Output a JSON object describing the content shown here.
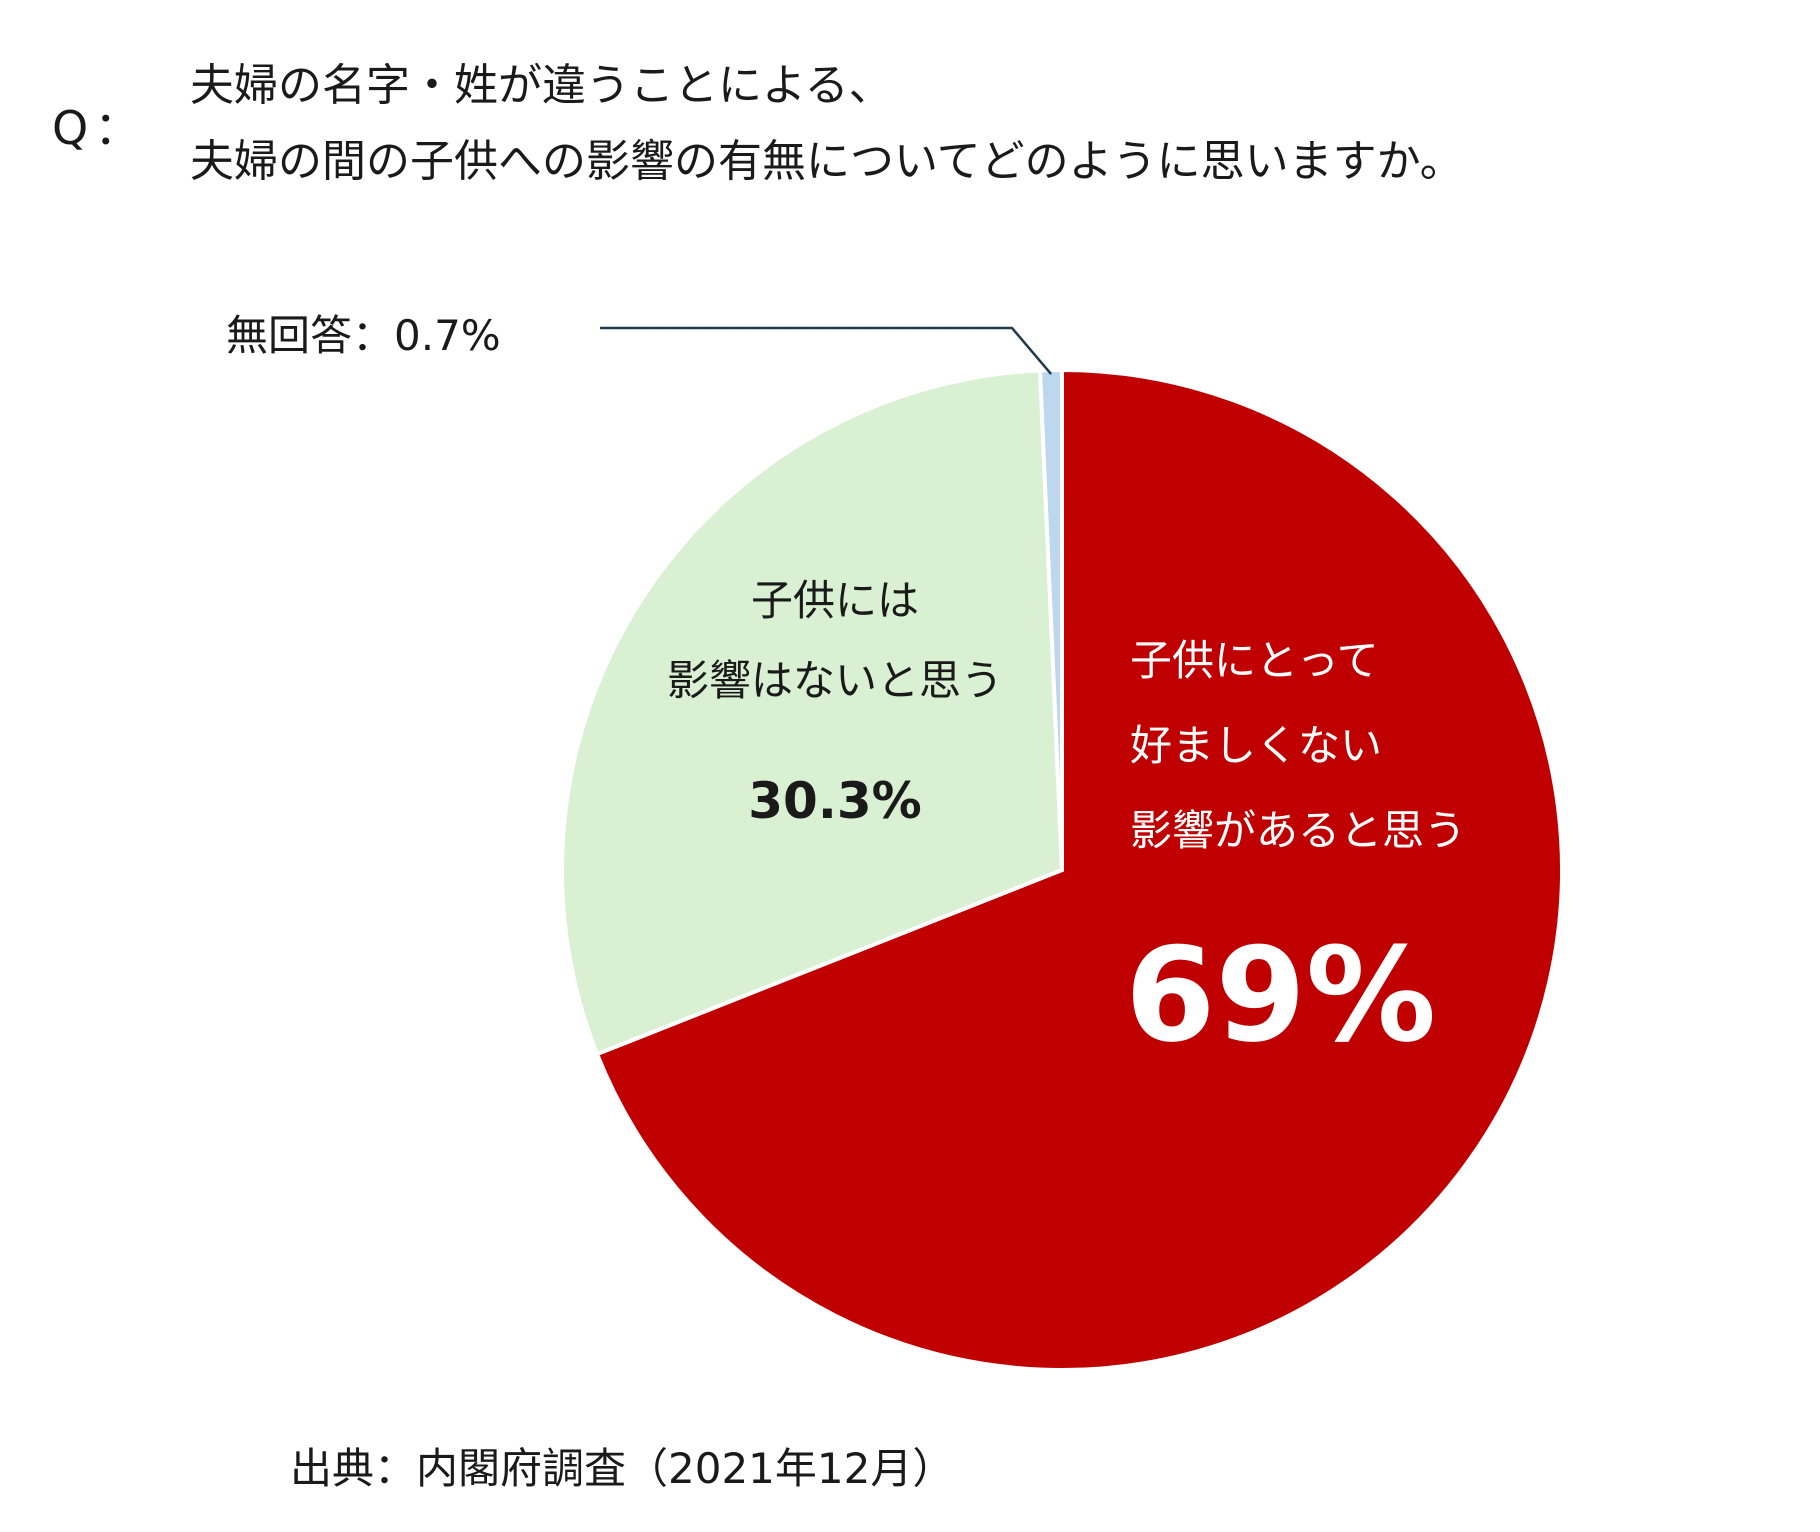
{
  "question": {
    "marker": "Q：",
    "lines": [
      "夫婦の名字・姓が違うことによる、",
      "夫婦の間の子供への影響の有無についてどのように思いますか。"
    ]
  },
  "source": "出典：内閣府調査（2021年12月）",
  "chart_data": {
    "type": "pie",
    "start_angle_deg": 0,
    "direction": "clockwise",
    "slices": [
      {
        "label_lines": [
          "子供にとって",
          "好ましくない",
          "影響があると思う"
        ],
        "value_label": "69%",
        "value": 69.0,
        "color": "#c00000",
        "text_color": "#ffffff"
      },
      {
        "label_lines": [
          "子供には",
          "影響はないと思う"
        ],
        "value_label": "30.3%",
        "value": 30.3,
        "color": "#d9f0d3",
        "text_color": "#1a1a1a"
      },
      {
        "label_lines": [
          "無回答：0.7%"
        ],
        "value_label": "",
        "value": 0.7,
        "color": "#bcd7ee",
        "text_color": "#1a1a1a"
      }
    ]
  }
}
